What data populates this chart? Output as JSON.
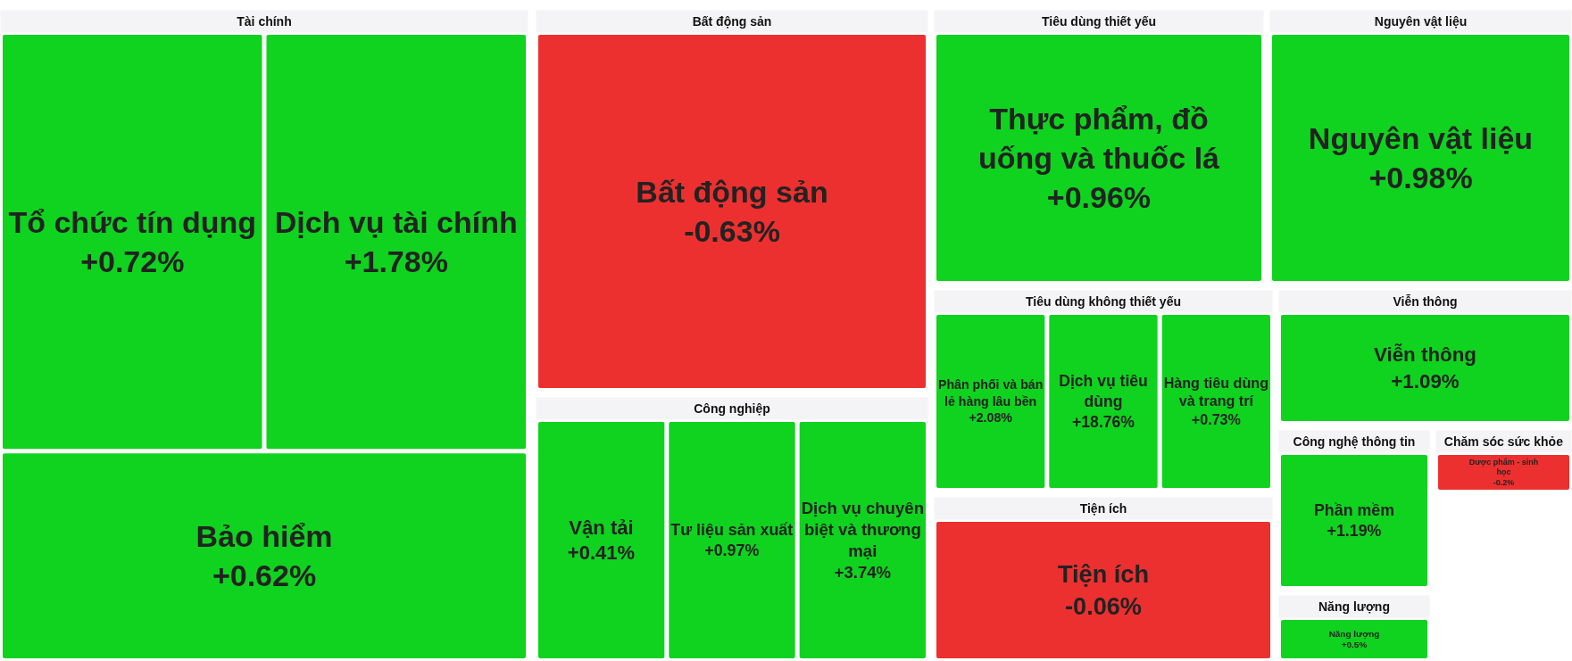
{
  "chart_data": [
    {
      "type": "other",
      "title": "Tài chính",
      "categories": [
        "Tổ chức tín dụng",
        "Dịch vụ tài chính",
        "Bảo hiểm"
      ],
      "values": [
        0.72,
        1.78,
        0.62
      ],
      "value_labels": [
        "+0.72%",
        "+1.78%",
        "+0.62%"
      ],
      "colors": [
        "#0fd31f",
        "#0fd31f",
        "#0fd31f"
      ]
    },
    {
      "type": "other",
      "title": "Bất động sản",
      "categories": [
        "Bất động sản"
      ],
      "values": [
        -0.63
      ],
      "value_labels": [
        "-0.63%"
      ],
      "colors": [
        "#ec3030"
      ]
    },
    {
      "type": "other",
      "title": "Tiêu dùng thiết yếu",
      "categories": [
        "Thực phẩm, đồ uống và thuốc lá"
      ],
      "values": [
        0.96
      ],
      "value_labels": [
        "+0.96%"
      ],
      "colors": [
        "#0fd31f"
      ]
    },
    {
      "type": "other",
      "title": "Nguyên vật liệu",
      "categories": [
        "Nguyên vật liệu"
      ],
      "values": [
        0.98
      ],
      "value_labels": [
        "+0.98%"
      ],
      "colors": [
        "#0fd31f"
      ]
    },
    {
      "type": "other",
      "title": "Tiêu dùng không thiết yếu",
      "categories": [
        "Phân phối và bán lẻ hàng lâu bền",
        "Dịch vụ tiêu dùng",
        "Hàng tiêu dùng và trang trí"
      ],
      "values": [
        2.08,
        18.76,
        0.73
      ],
      "value_labels": [
        "+2.08%",
        "+18.76%",
        "+0.73%"
      ],
      "colors": [
        "#0fd31f",
        "#0fd31f",
        "#0fd31f"
      ]
    },
    {
      "type": "other",
      "title": "Viễn thông",
      "categories": [
        "Viễn thông"
      ],
      "values": [
        1.09
      ],
      "value_labels": [
        "+1.09%"
      ],
      "colors": [
        "#0fd31f"
      ]
    },
    {
      "type": "other",
      "title": "Công nghiệp",
      "categories": [
        "Vận tải",
        "Tư liệu sản xuất",
        "Dịch vụ chuyên biệt và thương mại"
      ],
      "values": [
        0.41,
        0.97,
        3.74
      ],
      "value_labels": [
        "+0.41%",
        "+0.97%",
        "+3.74%"
      ],
      "colors": [
        "#0fd31f",
        "#0fd31f",
        "#0fd31f"
      ]
    },
    {
      "type": "other",
      "title": "Công nghệ thông tin",
      "categories": [
        "Phần mềm"
      ],
      "values": [
        1.19
      ],
      "value_labels": [
        "+1.19%"
      ],
      "colors": [
        "#0fd31f"
      ]
    },
    {
      "type": "other",
      "title": "Chăm sóc sức khỏe",
      "categories": [
        "Dược phẩm - sinh học"
      ],
      "values": [
        -0.2
      ],
      "value_labels": [
        "-0.2%"
      ],
      "colors": [
        "#ec3030"
      ]
    },
    {
      "type": "other",
      "title": "Tiện ích",
      "categories": [
        "Tiện ích"
      ],
      "values": [
        -0.06
      ],
      "value_labels": [
        "-0.06%"
      ],
      "colors": [
        "#ec3030"
      ]
    },
    {
      "type": "other",
      "title": "Năng lượng",
      "categories": [
        "Năng lượng"
      ],
      "values": [
        0.5
      ],
      "value_labels": [
        "+0.5%"
      ],
      "colors": [
        "#0fd31f"
      ]
    }
  ]
}
